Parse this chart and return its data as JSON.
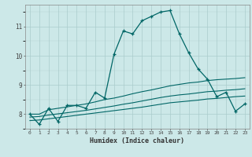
{
  "xlabel": "Humidex (Indice chaleur)",
  "ylabel": "",
  "xlim": [
    -0.5,
    23.5
  ],
  "ylim": [
    7.5,
    11.75
  ],
  "background_color": "#cce8e8",
  "grid_color": "#aacccc",
  "line_color": "#006666",
  "line1_x": [
    0,
    1,
    2,
    3,
    4,
    5,
    6,
    7,
    8,
    9,
    10,
    11,
    12,
    13,
    14,
    15,
    16,
    17,
    18,
    19,
    20,
    21,
    22,
    23
  ],
  "line1_y": [
    8.0,
    7.65,
    8.2,
    7.75,
    8.3,
    8.3,
    8.2,
    8.75,
    8.55,
    10.05,
    10.85,
    10.75,
    11.2,
    11.35,
    11.5,
    11.55,
    10.75,
    10.1,
    9.55,
    9.2,
    8.6,
    8.75,
    8.1,
    8.35
  ],
  "line2_x": [
    0,
    1,
    2,
    3,
    4,
    5,
    6,
    7,
    8,
    9,
    10,
    11,
    12,
    13,
    14,
    15,
    16,
    17,
    18,
    19,
    20,
    21,
    22,
    23
  ],
  "line2_y": [
    8.0,
    8.0,
    8.15,
    8.2,
    8.25,
    8.3,
    8.35,
    8.42,
    8.5,
    8.55,
    8.62,
    8.7,
    8.77,
    8.83,
    8.9,
    8.97,
    9.02,
    9.07,
    9.1,
    9.15,
    9.18,
    9.2,
    9.22,
    9.25
  ],
  "line3_x": [
    0,
    1,
    2,
    3,
    4,
    5,
    6,
    7,
    8,
    9,
    10,
    11,
    12,
    13,
    14,
    15,
    16,
    17,
    18,
    19,
    20,
    21,
    22,
    23
  ],
  "line3_y": [
    7.9,
    7.92,
    7.97,
    8.01,
    8.05,
    8.09,
    8.13,
    8.18,
    8.23,
    8.28,
    8.34,
    8.39,
    8.45,
    8.51,
    8.57,
    8.62,
    8.66,
    8.69,
    8.73,
    8.77,
    8.79,
    8.82,
    8.84,
    8.87
  ],
  "line4_x": [
    0,
    1,
    2,
    3,
    4,
    5,
    6,
    7,
    8,
    9,
    10,
    11,
    12,
    13,
    14,
    15,
    16,
    17,
    18,
    19,
    20,
    21,
    22,
    23
  ],
  "line4_y": [
    7.78,
    7.8,
    7.84,
    7.88,
    7.92,
    7.96,
    8.0,
    8.04,
    8.08,
    8.12,
    8.16,
    8.2,
    8.24,
    8.29,
    8.34,
    8.39,
    8.42,
    8.45,
    8.48,
    8.52,
    8.54,
    8.57,
    8.6,
    8.62
  ]
}
